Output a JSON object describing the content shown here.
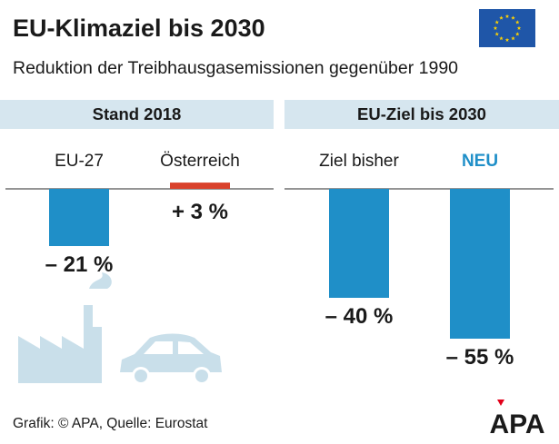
{
  "title": "EU-Klimaziel bis 2030",
  "subtitle": "Reduktion der Treibhausgasemissionen gegenüber 1990",
  "footer": "Grafik: © APA, Quelle: Eurostat",
  "logo_text": "APA",
  "icons": [
    "eu-flag-icon",
    "factory-icon",
    "car-icon",
    "apa-logo"
  ],
  "colors": {
    "bar_negative": "#1f8fc8",
    "bar_positive": "#d9412b",
    "highlight_text": "#1f8fc8",
    "panel_header_bg": "#d6e6ef",
    "flag_blue": "#1f56a8",
    "flag_star": "#ffd200",
    "illustration": "#c9dfea",
    "logo_red": "#e2001a"
  },
  "chart_data": [
    {
      "type": "bar",
      "title": "Stand 2018",
      "categories": [
        "EU-27",
        "Österreich"
      ],
      "values": [
        -21,
        3
      ],
      "value_labels": [
        "– 21 %",
        "+ 3 %"
      ],
      "bar_colors": [
        "#1f8fc8",
        "#d9412b"
      ],
      "highlight": [
        false,
        false
      ]
    },
    {
      "type": "bar",
      "title": "EU-Ziel bis 2030",
      "categories": [
        "Ziel bisher",
        "NEU"
      ],
      "values": [
        -40,
        -55
      ],
      "value_labels": [
        "– 40 %",
        "– 55 %"
      ],
      "bar_colors": [
        "#1f8fc8",
        "#1f8fc8"
      ],
      "highlight": [
        false,
        true
      ]
    }
  ]
}
